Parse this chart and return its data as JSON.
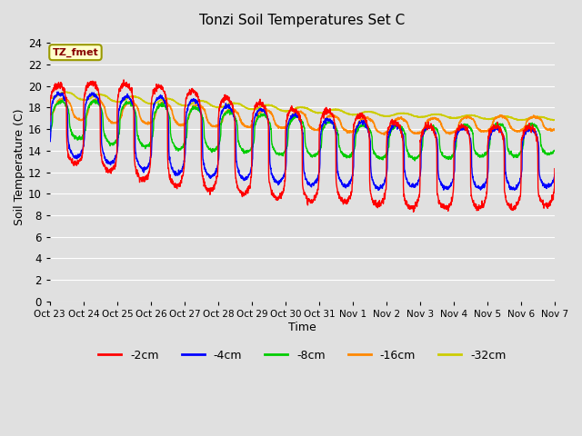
{
  "title": "Tonzi Soil Temperatures Set C",
  "xlabel": "Time",
  "ylabel": "Soil Temperature (C)",
  "ylim": [
    0,
    25
  ],
  "yticks": [
    0,
    2,
    4,
    6,
    8,
    10,
    12,
    14,
    16,
    18,
    20,
    22,
    24
  ],
  "x_labels": [
    "Oct 23",
    "Oct 24",
    "Oct 25",
    "Oct 26",
    "Oct 27",
    "Oct 28",
    "Oct 29",
    "Oct 30",
    "Oct 31",
    "Nov 1",
    "Nov 2",
    "Nov 3",
    "Nov 4",
    "Nov 5",
    "Nov 6",
    "Nov 7"
  ],
  "n_days": 15,
  "bg_color": "#e0e0e0",
  "plot_bg_color": "#e0e0e0",
  "grid_color": "#ffffff",
  "colors": {
    "-2cm": "#ff0000",
    "-4cm": "#0000ff",
    "-8cm": "#00cc00",
    "-16cm": "#ff8800",
    "-32cm": "#cccc00"
  },
  "legend_label": "TZ_fmet",
  "legend_box_color": "#ffffcc",
  "legend_box_edge": "#999900"
}
